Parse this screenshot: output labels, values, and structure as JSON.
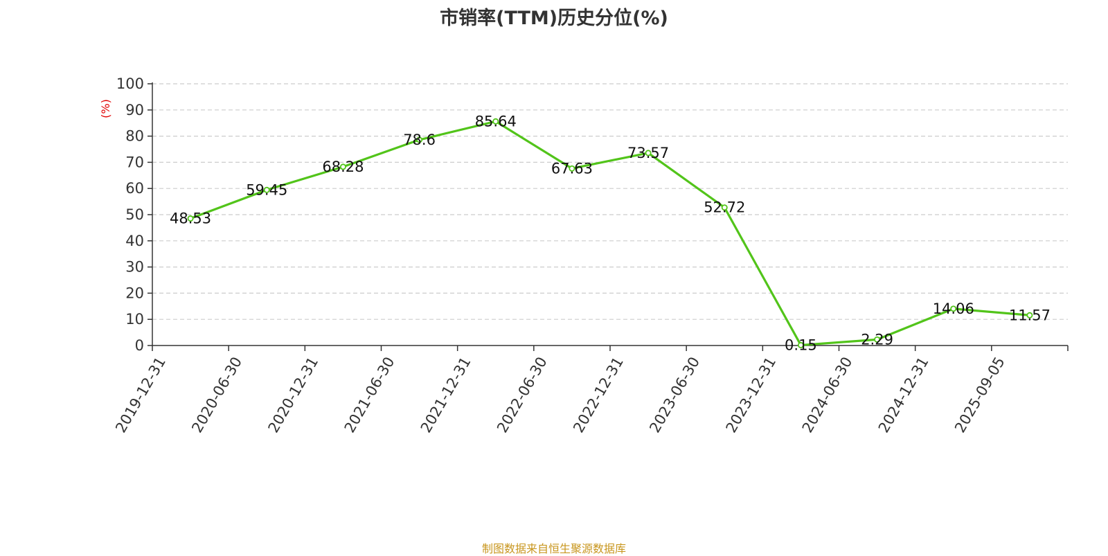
{
  "chart_data": {
    "type": "line",
    "title": "市销率(TTM)历史分位(%)",
    "ylabel": "(%)",
    "xlabel": "",
    "ylim": [
      0,
      100
    ],
    "yticks": [
      0,
      10,
      20,
      30,
      40,
      50,
      60,
      70,
      80,
      90,
      100
    ],
    "grid": true,
    "categories": [
      "2019-12-31",
      "2020-06-30",
      "2020-12-31",
      "2021-06-30",
      "2021-12-31",
      "2022-06-30",
      "2022-12-31",
      "2023-06-30",
      "2023-12-31",
      "2024-06-30",
      "2024-12-31",
      "2025-09-05"
    ],
    "series": [
      {
        "values": [
          48.53,
          59.45,
          68.28,
          78.6,
          85.64,
          67.63,
          73.57,
          52.72,
          0.15,
          2.29,
          14.06,
          11.57
        ],
        "labels": [
          "48.53",
          "59.45",
          "68.28",
          "78.6",
          "85.64",
          "67.63",
          "73.57",
          "52.72",
          "0.15",
          "2.29",
          "14.06",
          "11.57"
        ],
        "color": "#52c41a"
      }
    ]
  },
  "source": "制图数据来自恒生聚源数据库"
}
